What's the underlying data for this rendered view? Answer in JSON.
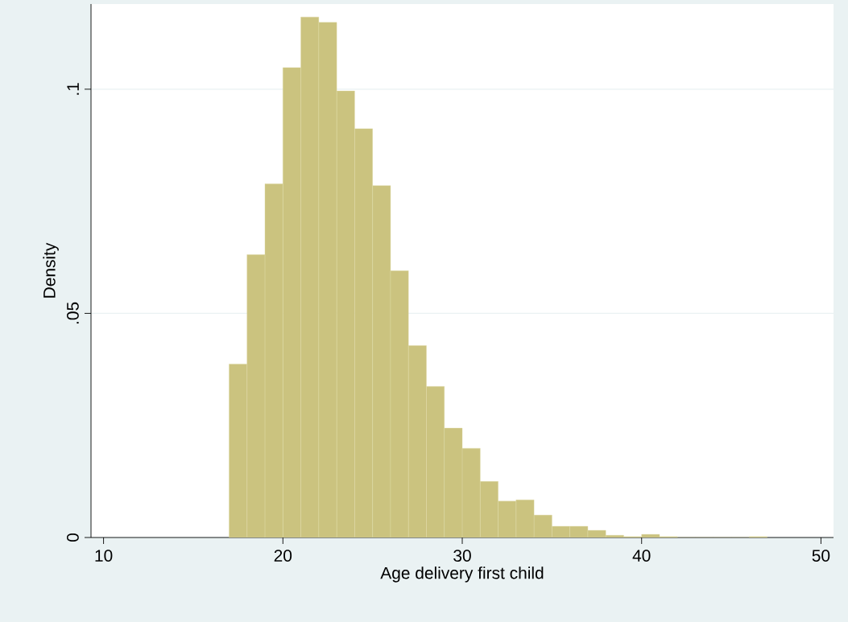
{
  "chart_data": {
    "type": "histogram",
    "xlabel": "Age delivery first child",
    "ylabel": "Density",
    "bins": [
      17,
      18,
      19,
      20,
      21,
      22,
      23,
      24,
      25,
      26,
      27,
      28,
      29,
      30,
      31,
      32,
      33,
      34,
      35,
      36,
      37,
      38,
      39,
      40,
      41,
      42,
      43,
      44,
      45,
      46,
      47
    ],
    "values": [
      0.0387,
      0.0631,
      0.0789,
      0.1048,
      0.1161,
      0.1149,
      0.0996,
      0.0912,
      0.0785,
      0.0595,
      0.0428,
      0.0337,
      0.0244,
      0.0199,
      0.0125,
      0.0081,
      0.0084,
      0.005,
      0.0025,
      0.0025,
      0.0016,
      0.0005,
      0.0002,
      0.0007,
      0.0002,
      0,
      0,
      0,
      0,
      0.0002
    ],
    "color": "#cbc37f",
    "xlim": [
      9.3,
      50.7
    ],
    "ylim": [
      0,
      0.119
    ],
    "xticks": [
      10,
      20,
      30,
      40,
      50
    ],
    "yticks": [
      0,
      {
        "value": 0.05,
        "label": ".05"
      },
      {
        "value": 0.1,
        "label": ".1"
      }
    ],
    "grid": "y"
  }
}
